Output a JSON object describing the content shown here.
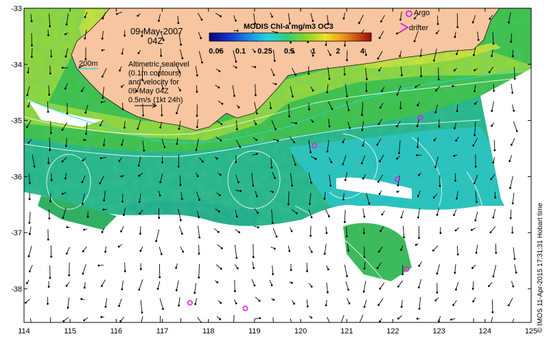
{
  "map": {
    "date_label": "09-May-2007",
    "time_label": "04Z",
    "colorbar_title": "MODIS Chl-a mg/m3 OC3",
    "colorbar_ticks": [
      "0.05",
      "0.1",
      "0.25",
      "0.5",
      "1",
      "2",
      "4"
    ],
    "legend": {
      "argo_label": "Argo",
      "drifter_label": "drifter"
    },
    "isobath_label": "200m",
    "notes": [
      "Altimetric sealevel",
      "(0.1m contours)",
      "and velocity for",
      "09-May 04Z",
      "0.5m/s (1kt 24h)"
    ],
    "credit": "© IMOS 11-Apr-2015 17:31:31 Hobart time",
    "lon_ticks": [
      "114",
      "115",
      "116",
      "117",
      "118",
      "119",
      "120",
      "121",
      "122",
      "123",
      "124",
      "125"
    ],
    "lat_ticks": [
      "-33",
      "-34",
      "-35",
      "-36",
      "-37",
      "-38"
    ],
    "extent": {
      "lon_min": 114,
      "lon_max": 125,
      "lat_max": -33,
      "lat_min": -38.6
    },
    "argo_floats": [
      {
        "lon": 120.3,
        "lat": -35.45
      },
      {
        "lon": 122.6,
        "lat": -34.95
      },
      {
        "lon": 122.1,
        "lat": -36.05
      },
      {
        "lon": 122.3,
        "lat": -37.65
      },
      {
        "lon": 117.6,
        "lat": -38.25
      },
      {
        "lon": 118.8,
        "lat": -38.35
      }
    ],
    "colors": {
      "land": "#f7c59f",
      "ocean_green": "#3ec04a",
      "ocean_teal": "#22b398",
      "ocean_cyan": "#28c6d0",
      "coast_yellow": "#d2e23b",
      "argo": "#e020e0",
      "contour": "#ffffff",
      "isobath": "#2fd3e6"
    }
  }
}
